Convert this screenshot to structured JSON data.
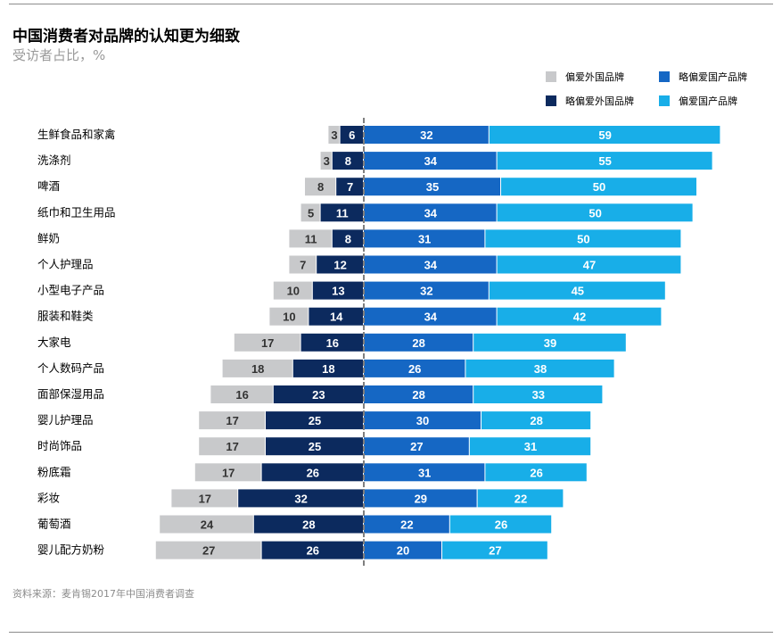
{
  "title": "中国消费者对品牌的认知更为细致",
  "subtitle": "受访者占比，%",
  "source": "资料来源：麦肯锡2017年中国消费者调查",
  "colors": {
    "foreign": "#c8c9cb",
    "slightly_foreign": "#0c2a5e",
    "slightly_domestic": "#1567c4",
    "domestic": "#18aee8"
  },
  "legend": [
    {
      "label": "偏爱外国品牌",
      "color": "#c8c9cb"
    },
    {
      "label": "略偏爱国产品牌",
      "color": "#1567c4"
    },
    {
      "label": "略偏爱外国品牌",
      "color": "#0c2a5e"
    },
    {
      "label": "偏爱国产品牌",
      "color": "#18aee8"
    }
  ],
  "chart_data": {
    "type": "bar",
    "orientation": "horizontal-diverging",
    "categories": [
      "生鲜食品和家禽",
      "洗涤剂",
      "啤酒",
      "纸巾和卫生用品",
      "鲜奶",
      "个人护理品",
      "小型电子产品",
      "服装和鞋类",
      "大家电",
      "个人数码产品",
      "面部保湿用品",
      "婴儿护理品",
      "时尚饰品",
      "粉底霜",
      "彩妆",
      "葡萄酒",
      "婴儿配方奶粉"
    ],
    "series": [
      {
        "name": "偏爱外国品牌",
        "side": "left",
        "values": [
          3,
          3,
          8,
          5,
          11,
          7,
          10,
          10,
          17,
          18,
          16,
          17,
          17,
          17,
          17,
          24,
          27
        ]
      },
      {
        "name": "略偏爱外国品牌",
        "side": "left",
        "values": [
          6,
          8,
          7,
          11,
          8,
          12,
          13,
          14,
          16,
          18,
          23,
          25,
          25,
          26,
          32,
          28,
          26
        ]
      },
      {
        "name": "略偏爱国产品牌",
        "side": "right",
        "values": [
          32,
          34,
          35,
          34,
          31,
          34,
          32,
          34,
          28,
          26,
          28,
          30,
          27,
          31,
          29,
          22,
          20
        ]
      },
      {
        "name": "偏爱国产品牌",
        "side": "right",
        "values": [
          59,
          55,
          50,
          50,
          50,
          47,
          45,
          42,
          39,
          38,
          33,
          28,
          31,
          26,
          22,
          26,
          27
        ]
      }
    ],
    "data_labels": true
  }
}
